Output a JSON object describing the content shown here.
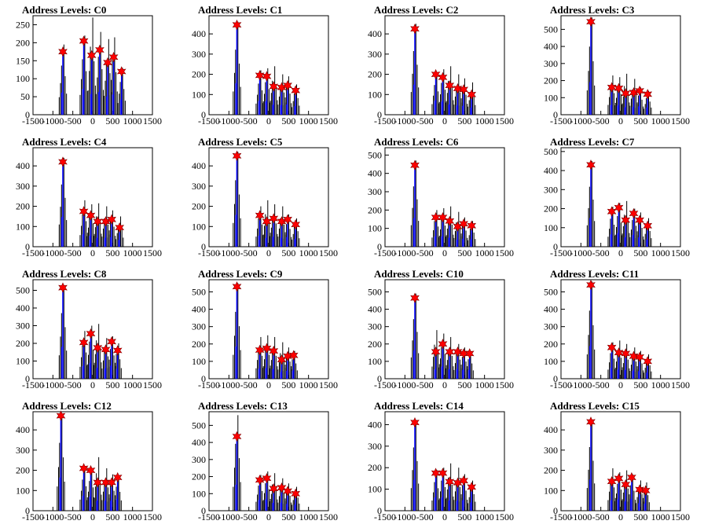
{
  "colors": {
    "black_hist": "#000000",
    "blue_hist": "#0000ff",
    "marker": "#ff0000",
    "axis": "#000000"
  },
  "chart_data": [
    {
      "type": "bar",
      "title": "Address Levels: C0",
      "xlim": [
        -1500,
        1500
      ],
      "ylim": [
        0,
        275
      ],
      "yticks": [
        0,
        50,
        100,
        150,
        200,
        250
      ],
      "xticks": [
        -1500,
        -1000,
        -500,
        0,
        500,
        1000,
        1500
      ],
      "positions": [
        -750,
        -225,
        -25,
        175,
        375,
        525,
        725
      ],
      "peaks": [
        175,
        205,
        165,
        180,
        145,
        160,
        120
      ],
      "heights": [
        195,
        220,
        270,
        230,
        210,
        215,
        130
      ]
    },
    {
      "type": "bar",
      "title": "Address Levels: C1",
      "xlim": [
        -1500,
        1500
      ],
      "ylim": [
        0,
        490
      ],
      "yticks": [
        0,
        100,
        200,
        300,
        400
      ],
      "xticks": [
        -1500,
        -1000,
        -500,
        0,
        500,
        1000,
        1500
      ],
      "positions": [
        -800,
        -225,
        -50,
        125,
        325,
        475,
        675
      ],
      "peaks": [
        445,
        195,
        190,
        140,
        135,
        145,
        120
      ],
      "heights": [
        460,
        220,
        230,
        240,
        200,
        190,
        150
      ]
    },
    {
      "type": "bar",
      "title": "Address Levels: C2",
      "xlim": [
        -1500,
        1500
      ],
      "ylim": [
        0,
        490
      ],
      "yticks": [
        0,
        100,
        200,
        300,
        400
      ],
      "xticks": [
        -1500,
        -1000,
        -500,
        0,
        500,
        1000,
        1500
      ],
      "positions": [
        -750,
        -225,
        -50,
        125,
        325,
        475,
        675
      ],
      "peaks": [
        425,
        200,
        185,
        145,
        130,
        125,
        100
      ],
      "heights": [
        450,
        210,
        225,
        240,
        200,
        180,
        160
      ]
    },
    {
      "type": "bar",
      "title": "Address Levels: C3",
      "xlim": [
        -1500,
        1500
      ],
      "ylim": [
        0,
        580
      ],
      "yticks": [
        0,
        100,
        200,
        300,
        400,
        500
      ],
      "xticks": [
        -1500,
        -1000,
        -500,
        0,
        500,
        1000,
        1500
      ],
      "positions": [
        -750,
        -225,
        -50,
        125,
        325,
        475,
        675
      ],
      "peaks": [
        545,
        160,
        155,
        125,
        130,
        140,
        120
      ],
      "heights": [
        570,
        230,
        220,
        240,
        210,
        160,
        140
      ]
    },
    {
      "type": "bar",
      "title": "Address Levels: C4",
      "xlim": [
        -1500,
        1500
      ],
      "ylim": [
        0,
        490
      ],
      "yticks": [
        0,
        100,
        200,
        300,
        400
      ],
      "xticks": [
        -1500,
        -1000,
        -500,
        0,
        500,
        1000,
        1500
      ],
      "positions": [
        -750,
        -225,
        -50,
        125,
        325,
        475,
        675
      ],
      "peaks": [
        420,
        175,
        155,
        125,
        125,
        135,
        95
      ],
      "heights": [
        440,
        230,
        210,
        215,
        200,
        180,
        150
      ]
    },
    {
      "type": "bar",
      "title": "Address Levels: C5",
      "xlim": [
        -1500,
        1500
      ],
      "ylim": [
        0,
        490
      ],
      "yticks": [
        0,
        100,
        200,
        300,
        400
      ],
      "xticks": [
        -1500,
        -1000,
        -500,
        0,
        500,
        1000,
        1500
      ],
      "positions": [
        -800,
        -225,
        -50,
        125,
        325,
        475,
        675
      ],
      "peaks": [
        450,
        155,
        125,
        140,
        125,
        135,
        110
      ],
      "heights": [
        470,
        200,
        230,
        210,
        200,
        160,
        140
      ]
    },
    {
      "type": "bar",
      "title": "Address Levels: C6",
      "xlim": [
        -1500,
        1500
      ],
      "ylim": [
        0,
        540
      ],
      "yticks": [
        0,
        100,
        200,
        300,
        400,
        500
      ],
      "xticks": [
        -1500,
        -1000,
        -500,
        0,
        500,
        1000,
        1500
      ],
      "positions": [
        -750,
        -225,
        -50,
        125,
        325,
        475,
        675
      ],
      "peaks": [
        445,
        160,
        160,
        140,
        110,
        125,
        115
      ],
      "heights": [
        470,
        200,
        210,
        220,
        190,
        160,
        140
      ]
    },
    {
      "type": "bar",
      "title": "Address Levels: C7",
      "xlim": [
        -1500,
        1500
      ],
      "ylim": [
        0,
        520
      ],
      "yticks": [
        0,
        100,
        200,
        300,
        400,
        500
      ],
      "xticks": [
        -1500,
        -1000,
        -500,
        0,
        500,
        1000,
        1500
      ],
      "positions": [
        -750,
        -225,
        -50,
        125,
        325,
        475,
        675
      ],
      "peaks": [
        430,
        185,
        205,
        140,
        175,
        140,
        110
      ],
      "heights": [
        450,
        210,
        230,
        240,
        200,
        180,
        150
      ]
    },
    {
      "type": "bar",
      "title": "Address Levels: C8",
      "xlim": [
        -1500,
        1500
      ],
      "ylim": [
        0,
        560
      ],
      "yticks": [
        0,
        100,
        200,
        300,
        400,
        500
      ],
      "xticks": [
        -1500,
        -1000,
        -500,
        0,
        500,
        1000,
        1500
      ],
      "positions": [
        -750,
        -225,
        -50,
        125,
        325,
        475,
        625
      ],
      "peaks": [
        515,
        205,
        255,
        175,
        165,
        210,
        160
      ],
      "heights": [
        530,
        270,
        300,
        310,
        230,
        240,
        200
      ]
    },
    {
      "type": "bar",
      "title": "Address Levels: C9",
      "xlim": [
        -1500,
        1500
      ],
      "ylim": [
        0,
        570
      ],
      "yticks": [
        0,
        100,
        200,
        300,
        400,
        500
      ],
      "xticks": [
        -1500,
        -1000,
        -500,
        0,
        500,
        1000,
        1500
      ],
      "positions": [
        -800,
        -225,
        -50,
        125,
        325,
        475,
        625
      ],
      "peaks": [
        530,
        165,
        175,
        160,
        110,
        130,
        135
      ],
      "heights": [
        550,
        240,
        250,
        240,
        210,
        180,
        160
      ]
    },
    {
      "type": "bar",
      "title": "Address Levels: C10",
      "xlim": [
        -1500,
        1500
      ],
      "ylim": [
        0,
        570
      ],
      "yticks": [
        0,
        100,
        200,
        300,
        400,
        500
      ],
      "xticks": [
        -1500,
        -1000,
        -500,
        0,
        500,
        1000,
        1500
      ],
      "positions": [
        -750,
        -225,
        -50,
        125,
        325,
        475,
        625
      ],
      "peaks": [
        465,
        155,
        200,
        155,
        155,
        145,
        145
      ],
      "heights": [
        490,
        280,
        260,
        240,
        200,
        180,
        160
      ]
    },
    {
      "type": "bar",
      "title": "Address Levels: C11",
      "xlim": [
        -1500,
        1500
      ],
      "ylim": [
        0,
        570
      ],
      "yticks": [
        0,
        100,
        200,
        300,
        400,
        500
      ],
      "xticks": [
        -1500,
        -1000,
        -500,
        0,
        500,
        1000,
        1500
      ],
      "positions": [
        -750,
        -225,
        -50,
        125,
        325,
        475,
        675
      ],
      "peaks": [
        540,
        180,
        150,
        145,
        130,
        125,
        100
      ],
      "heights": [
        560,
        210,
        220,
        200,
        180,
        160,
        140
      ]
    },
    {
      "type": "bar",
      "title": "Address Levels: C12",
      "xlim": [
        -1500,
        1500
      ],
      "ylim": [
        0,
        490
      ],
      "yticks": [
        0,
        100,
        200,
        300,
        400
      ],
      "xticks": [
        -1500,
        -1000,
        -500,
        0,
        500,
        1000,
        1500
      ],
      "positions": [
        -800,
        -225,
        -50,
        125,
        325,
        475,
        625
      ],
      "peaks": [
        470,
        210,
        200,
        140,
        140,
        140,
        165
      ],
      "heights": [
        480,
        220,
        210,
        265,
        210,
        180,
        170
      ]
    },
    {
      "type": "bar",
      "title": "Address Levels: C13",
      "xlim": [
        -1500,
        1500
      ],
      "ylim": [
        0,
        580
      ],
      "yticks": [
        0,
        100,
        200,
        300,
        400,
        500
      ],
      "xticks": [
        -1500,
        -1000,
        -500,
        0,
        500,
        1000,
        1500
      ],
      "positions": [
        -800,
        -225,
        -50,
        125,
        325,
        475,
        675
      ],
      "peaks": [
        435,
        180,
        190,
        130,
        135,
        115,
        100
      ],
      "heights": [
        560,
        210,
        230,
        220,
        190,
        160,
        140
      ]
    },
    {
      "type": "bar",
      "title": "Address Levels: C14",
      "xlim": [
        -1500,
        1500
      ],
      "ylim": [
        0,
        460
      ],
      "yticks": [
        0,
        100,
        200,
        300,
        400
      ],
      "xticks": [
        -1500,
        -1000,
        -500,
        0,
        500,
        1000,
        1500
      ],
      "positions": [
        -750,
        -225,
        -50,
        125,
        325,
        475,
        675
      ],
      "peaks": [
        410,
        175,
        175,
        135,
        130,
        140,
        110
      ],
      "heights": [
        420,
        190,
        200,
        220,
        200,
        170,
        140
      ]
    },
    {
      "type": "bar",
      "title": "Address Levels: C15",
      "xlim": [
        -1500,
        1500
      ],
      "ylim": [
        0,
        490
      ],
      "yticks": [
        0,
        100,
        200,
        300,
        400
      ],
      "xticks": [
        -1500,
        -1000,
        -500,
        0,
        500,
        1000,
        1500
      ],
      "positions": [
        -750,
        -225,
        -50,
        125,
        275,
        475,
        625
      ],
      "peaks": [
        440,
        145,
        160,
        130,
        165,
        105,
        100
      ],
      "heights": [
        450,
        210,
        190,
        200,
        180,
        150,
        140
      ]
    }
  ]
}
